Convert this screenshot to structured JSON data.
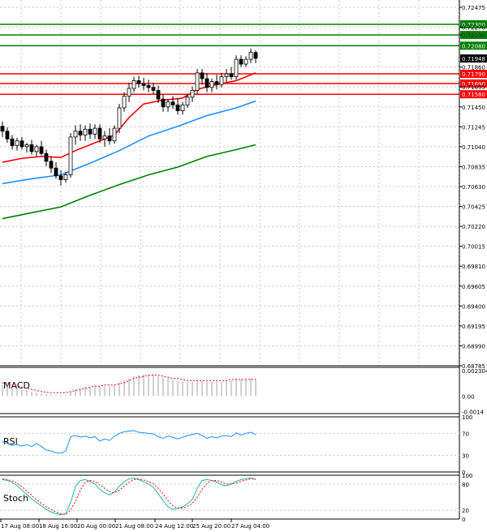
{
  "chart_data": {
    "type": "candlestick",
    "price_axis": {
      "ylim": [
        0.68785,
        0.72475
      ],
      "ticks": [
        "0.72475",
        "0.72270",
        "0.72190",
        "0.71860",
        "0.71655",
        "0.71450",
        "0.71245",
        "0.71040",
        "0.70835",
        "0.70630",
        "0.70425",
        "0.70220",
        "0.70015",
        "0.69810",
        "0.69605",
        "0.69400",
        "0.69195",
        "0.68990",
        "0.68785"
      ]
    },
    "level_lines": [
      {
        "value": 0.723,
        "label": "0.72300",
        "color": "#008000"
      },
      {
        "value": 0.7219,
        "label": "0.72190",
        "color": "#008000"
      },
      {
        "value": 0.7208,
        "label": "0.72080",
        "color": "#008000"
      },
      {
        "value": 0.7179,
        "label": "0.71790",
        "color": "#ff0000"
      },
      {
        "value": 0.7169,
        "label": "0.71690",
        "color": "#ff0000"
      },
      {
        "value": 0.7158,
        "label": "0.71580",
        "color": "#ff0000"
      }
    ],
    "last_price": {
      "value": 0.71948,
      "label": "0.71948"
    },
    "x_labels": [
      "17 Aug 08:00",
      "18 Aug 16:00",
      "20 Aug 00:00",
      "21 Aug 08:00",
      "24 Aug 12:00",
      "25 Aug 20:00",
      "27 Aug 04:00"
    ],
    "candles": [
      {
        "o": 0.7125,
        "h": 0.713,
        "l": 0.7114,
        "c": 0.712
      },
      {
        "o": 0.712,
        "h": 0.7124,
        "l": 0.7108,
        "c": 0.7112
      },
      {
        "o": 0.7112,
        "h": 0.7116,
        "l": 0.7101,
        "c": 0.7105
      },
      {
        "o": 0.7105,
        "h": 0.7113,
        "l": 0.71,
        "c": 0.711
      },
      {
        "o": 0.711,
        "h": 0.7114,
        "l": 0.7101,
        "c": 0.7104
      },
      {
        "o": 0.7104,
        "h": 0.7108,
        "l": 0.7098,
        "c": 0.7106
      },
      {
        "o": 0.7106,
        "h": 0.7111,
        "l": 0.7096,
        "c": 0.7099
      },
      {
        "o": 0.7099,
        "h": 0.7106,
        "l": 0.7094,
        "c": 0.7104
      },
      {
        "o": 0.7104,
        "h": 0.711,
        "l": 0.7095,
        "c": 0.7097
      },
      {
        "o": 0.7097,
        "h": 0.7101,
        "l": 0.7084,
        "c": 0.7089
      },
      {
        "o": 0.7089,
        "h": 0.7094,
        "l": 0.7077,
        "c": 0.7082
      },
      {
        "o": 0.7082,
        "h": 0.7088,
        "l": 0.7071,
        "c": 0.7074
      },
      {
        "o": 0.7074,
        "h": 0.708,
        "l": 0.7064,
        "c": 0.707
      },
      {
        "o": 0.707,
        "h": 0.7078,
        "l": 0.7067,
        "c": 0.7075
      },
      {
        "o": 0.7075,
        "h": 0.7118,
        "l": 0.7072,
        "c": 0.7114
      },
      {
        "o": 0.7114,
        "h": 0.7126,
        "l": 0.7106,
        "c": 0.712
      },
      {
        "o": 0.712,
        "h": 0.7127,
        "l": 0.711,
        "c": 0.7116
      },
      {
        "o": 0.7116,
        "h": 0.7126,
        "l": 0.711,
        "c": 0.7122
      },
      {
        "o": 0.7122,
        "h": 0.7128,
        "l": 0.7112,
        "c": 0.7117
      },
      {
        "o": 0.7117,
        "h": 0.7127,
        "l": 0.7112,
        "c": 0.7123
      },
      {
        "o": 0.7123,
        "h": 0.7127,
        "l": 0.7108,
        "c": 0.7112
      },
      {
        "o": 0.7112,
        "h": 0.712,
        "l": 0.7104,
        "c": 0.7115
      },
      {
        "o": 0.7115,
        "h": 0.7123,
        "l": 0.7106,
        "c": 0.711
      },
      {
        "o": 0.711,
        "h": 0.7126,
        "l": 0.7107,
        "c": 0.7123
      },
      {
        "o": 0.7123,
        "h": 0.7148,
        "l": 0.7118,
        "c": 0.7144
      },
      {
        "o": 0.7144,
        "h": 0.716,
        "l": 0.714,
        "c": 0.7156
      },
      {
        "o": 0.7156,
        "h": 0.717,
        "l": 0.715,
        "c": 0.7164
      },
      {
        "o": 0.7164,
        "h": 0.7176,
        "l": 0.716,
        "c": 0.7172
      },
      {
        "o": 0.7172,
        "h": 0.7177,
        "l": 0.7165,
        "c": 0.7169
      },
      {
        "o": 0.7169,
        "h": 0.7175,
        "l": 0.7162,
        "c": 0.7167
      },
      {
        "o": 0.7167,
        "h": 0.7173,
        "l": 0.716,
        "c": 0.7165
      },
      {
        "o": 0.7165,
        "h": 0.717,
        "l": 0.7158,
        "c": 0.7162
      },
      {
        "o": 0.7162,
        "h": 0.7167,
        "l": 0.7149,
        "c": 0.7153
      },
      {
        "o": 0.7153,
        "h": 0.7158,
        "l": 0.714,
        "c": 0.7145
      },
      {
        "o": 0.7145,
        "h": 0.7153,
        "l": 0.714,
        "c": 0.715
      },
      {
        "o": 0.715,
        "h": 0.7156,
        "l": 0.7143,
        "c": 0.7147
      },
      {
        "o": 0.7147,
        "h": 0.7154,
        "l": 0.7137,
        "c": 0.7141
      },
      {
        "o": 0.7141,
        "h": 0.715,
        "l": 0.7137,
        "c": 0.7147
      },
      {
        "o": 0.7147,
        "h": 0.7158,
        "l": 0.7144,
        "c": 0.7155
      },
      {
        "o": 0.7155,
        "h": 0.7166,
        "l": 0.715,
        "c": 0.7162
      },
      {
        "o": 0.7162,
        "h": 0.7184,
        "l": 0.7158,
        "c": 0.718
      },
      {
        "o": 0.718,
        "h": 0.7184,
        "l": 0.7168,
        "c": 0.7174
      },
      {
        "o": 0.7174,
        "h": 0.718,
        "l": 0.716,
        "c": 0.7165
      },
      {
        "o": 0.7165,
        "h": 0.7174,
        "l": 0.716,
        "c": 0.7171
      },
      {
        "o": 0.7171,
        "h": 0.7178,
        "l": 0.7163,
        "c": 0.7168
      },
      {
        "o": 0.7168,
        "h": 0.718,
        "l": 0.7165,
        "c": 0.7176
      },
      {
        "o": 0.7176,
        "h": 0.7184,
        "l": 0.717,
        "c": 0.7179
      },
      {
        "o": 0.7179,
        "h": 0.7186,
        "l": 0.7173,
        "c": 0.7176
      },
      {
        "o": 0.7176,
        "h": 0.7198,
        "l": 0.7173,
        "c": 0.7194
      },
      {
        "o": 0.7194,
        "h": 0.7198,
        "l": 0.7186,
        "c": 0.7189
      },
      {
        "o": 0.7189,
        "h": 0.7197,
        "l": 0.7186,
        "c": 0.7194
      },
      {
        "o": 0.7194,
        "h": 0.7205,
        "l": 0.719,
        "c": 0.7201
      },
      {
        "o": 0.7201,
        "h": 0.7203,
        "l": 0.719,
        "c": 0.7195
      }
    ],
    "ma_series": [
      {
        "color": "#ff0000",
        "values": [
          [
            0,
            0.7088
          ],
          [
            4,
            0.7092
          ],
          [
            8,
            0.7094
          ],
          [
            12,
            0.7093
          ],
          [
            15,
            0.71
          ],
          [
            20,
            0.711
          ],
          [
            23,
            0.7116
          ],
          [
            26,
            0.7134
          ],
          [
            29,
            0.7148
          ],
          [
            33,
            0.7152
          ],
          [
            37,
            0.7154
          ],
          [
            40,
            0.7163
          ],
          [
            44,
            0.7168
          ],
          [
            48,
            0.7172
          ],
          [
            52,
            0.718
          ]
        ]
      },
      {
        "color": "#1e90ff",
        "values": [
          [
            0,
            0.7066
          ],
          [
            6,
            0.7071
          ],
          [
            12,
            0.7075
          ],
          [
            18,
            0.7087
          ],
          [
            24,
            0.71
          ],
          [
            30,
            0.7115
          ],
          [
            36,
            0.7125
          ],
          [
            42,
            0.7136
          ],
          [
            48,
            0.7144
          ],
          [
            52,
            0.7151
          ]
        ]
      },
      {
        "color": "#008000",
        "values": [
          [
            0,
            0.703
          ],
          [
            6,
            0.7036
          ],
          [
            12,
            0.7042
          ],
          [
            18,
            0.7054
          ],
          [
            24,
            0.7065
          ],
          [
            30,
            0.7075
          ],
          [
            36,
            0.7083
          ],
          [
            42,
            0.7094
          ],
          [
            48,
            0.7101
          ],
          [
            52,
            0.7106
          ]
        ]
      }
    ],
    "panes": {
      "macd": {
        "title": "MACD",
        "ticks": [
          {
            "label": "0.002304",
            "value": 0.002304
          },
          {
            "label": "0.00",
            "value": 0
          },
          {
            "label": "-0.0014",
            "value": -0.0014
          }
        ],
        "ylim": [
          -0.0016,
          0.0026
        ],
        "histogram": [
          0.001,
          0.0009,
          0.0008,
          0.0007,
          0.0006,
          0.0005,
          0.0004,
          0.0003,
          0.00025,
          0.0002,
          0.00015,
          0.0001,
          0.0001,
          0.00012,
          0.0004,
          0.0006,
          0.0007,
          0.0008,
          0.0008,
          0.0009,
          0.0009,
          0.0009,
          0.0009,
          0.001,
          0.0012,
          0.0014,
          0.0016,
          0.0018,
          0.0019,
          0.0019,
          0.0019,
          0.0019,
          0.0018,
          0.0017,
          0.0016,
          0.0015,
          0.0014,
          0.0013,
          0.0013,
          0.0013,
          0.0014,
          0.0014,
          0.0013,
          0.0013,
          0.0013,
          0.0013,
          0.0014,
          0.0014,
          0.0015,
          0.0015,
          0.0015,
          0.0016,
          0.0016
        ],
        "signal": [
          0.0012,
          0.0011,
          0.001,
          0.0009,
          0.0008,
          0.0007,
          0.0006,
          0.0005,
          0.0004,
          0.00035,
          0.0003,
          0.0003,
          0.0003,
          0.0003,
          0.0004,
          0.0005,
          0.0006,
          0.0007,
          0.0008,
          0.0009,
          0.0009,
          0.001,
          0.001,
          0.001,
          0.0011,
          0.0012,
          0.0014,
          0.0016,
          0.0017,
          0.0018,
          0.0019,
          0.0019,
          0.0019,
          0.0018,
          0.0017,
          0.0016,
          0.0016,
          0.0015,
          0.0014,
          0.0014,
          0.0014,
          0.0014,
          0.0014,
          0.0014,
          0.0014,
          0.0014,
          0.0014,
          0.0015,
          0.0015,
          0.0015,
          0.0015,
          0.0015,
          0.0015
        ]
      },
      "rsi": {
        "title": "RSI",
        "ticks": [
          {
            "label": "100",
            "value": 100
          },
          {
            "label": "70",
            "value": 70
          },
          {
            "label": "30",
            "value": 30
          },
          {
            "label": "0",
            "value": 0
          }
        ],
        "ylim": [
          0,
          100
        ],
        "values": [
          55,
          52,
          48,
          50,
          47,
          50,
          46,
          52,
          46,
          40,
          38,
          35,
          34,
          38,
          64,
          66,
          63,
          65,
          62,
          64,
          56,
          60,
          57,
          65,
          70,
          73,
          74,
          75,
          72,
          71,
          70,
          69,
          64,
          61,
          65,
          63,
          60,
          63,
          66,
          68,
          70,
          66,
          61,
          64,
          62,
          65,
          66,
          64,
          71,
          67,
          70,
          72,
          68
        ]
      },
      "stoch": {
        "title": "Stoch",
        "ticks": [
          {
            "label": "100",
            "value": 100
          },
          {
            "label": "80",
            "value": 80
          },
          {
            "label": "20",
            "value": 20
          },
          {
            "label": "0",
            "value": 0
          }
        ],
        "ylim": [
          0,
          100
        ],
        "main": [
          90,
          88,
          84,
          76,
          66,
          56,
          46,
          38,
          30,
          22,
          16,
          12,
          10,
          12,
          38,
          75,
          88,
          90,
          86,
          80,
          68,
          60,
          55,
          62,
          75,
          85,
          92,
          93,
          90,
          85,
          80,
          72,
          58,
          42,
          28,
          22,
          24,
          28,
          35,
          45,
          70,
          88,
          90,
          88,
          84,
          78,
          76,
          80,
          86,
          90,
          92,
          94,
          90
        ],
        "signal": [
          92,
          90,
          87,
          82,
          74,
          64,
          54,
          44,
          36,
          28,
          22,
          16,
          12,
          11,
          20,
          40,
          66,
          84,
          88,
          86,
          78,
          70,
          62,
          60,
          66,
          75,
          84,
          90,
          92,
          89,
          86,
          80,
          70,
          57,
          42,
          30,
          25,
          25,
          29,
          36,
          50,
          68,
          82,
          88,
          88,
          84,
          80,
          80,
          82,
          86,
          89,
          92,
          92
        ]
      }
    }
  }
}
